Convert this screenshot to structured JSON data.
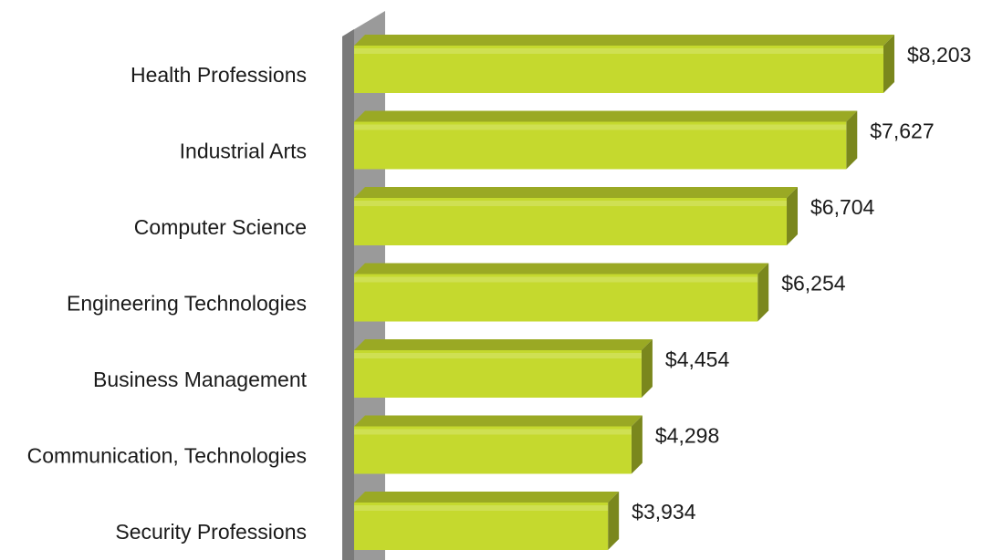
{
  "chart_data": {
    "type": "bar",
    "orientation": "horizontal",
    "categories": [
      "Health Professions",
      "Industrial Arts",
      "Computer Science",
      "Engineering Technologies",
      "Business Management",
      "Communication, Technologies",
      "Security Professions"
    ],
    "values": [
      8203,
      7627,
      6704,
      6254,
      4454,
      4298,
      3934
    ],
    "value_labels": [
      "$8,203",
      "$7,627",
      "$6,704",
      "$6,254",
      "$4,454",
      "$4,298",
      "$3,934"
    ],
    "color": "#c5d92e"
  }
}
